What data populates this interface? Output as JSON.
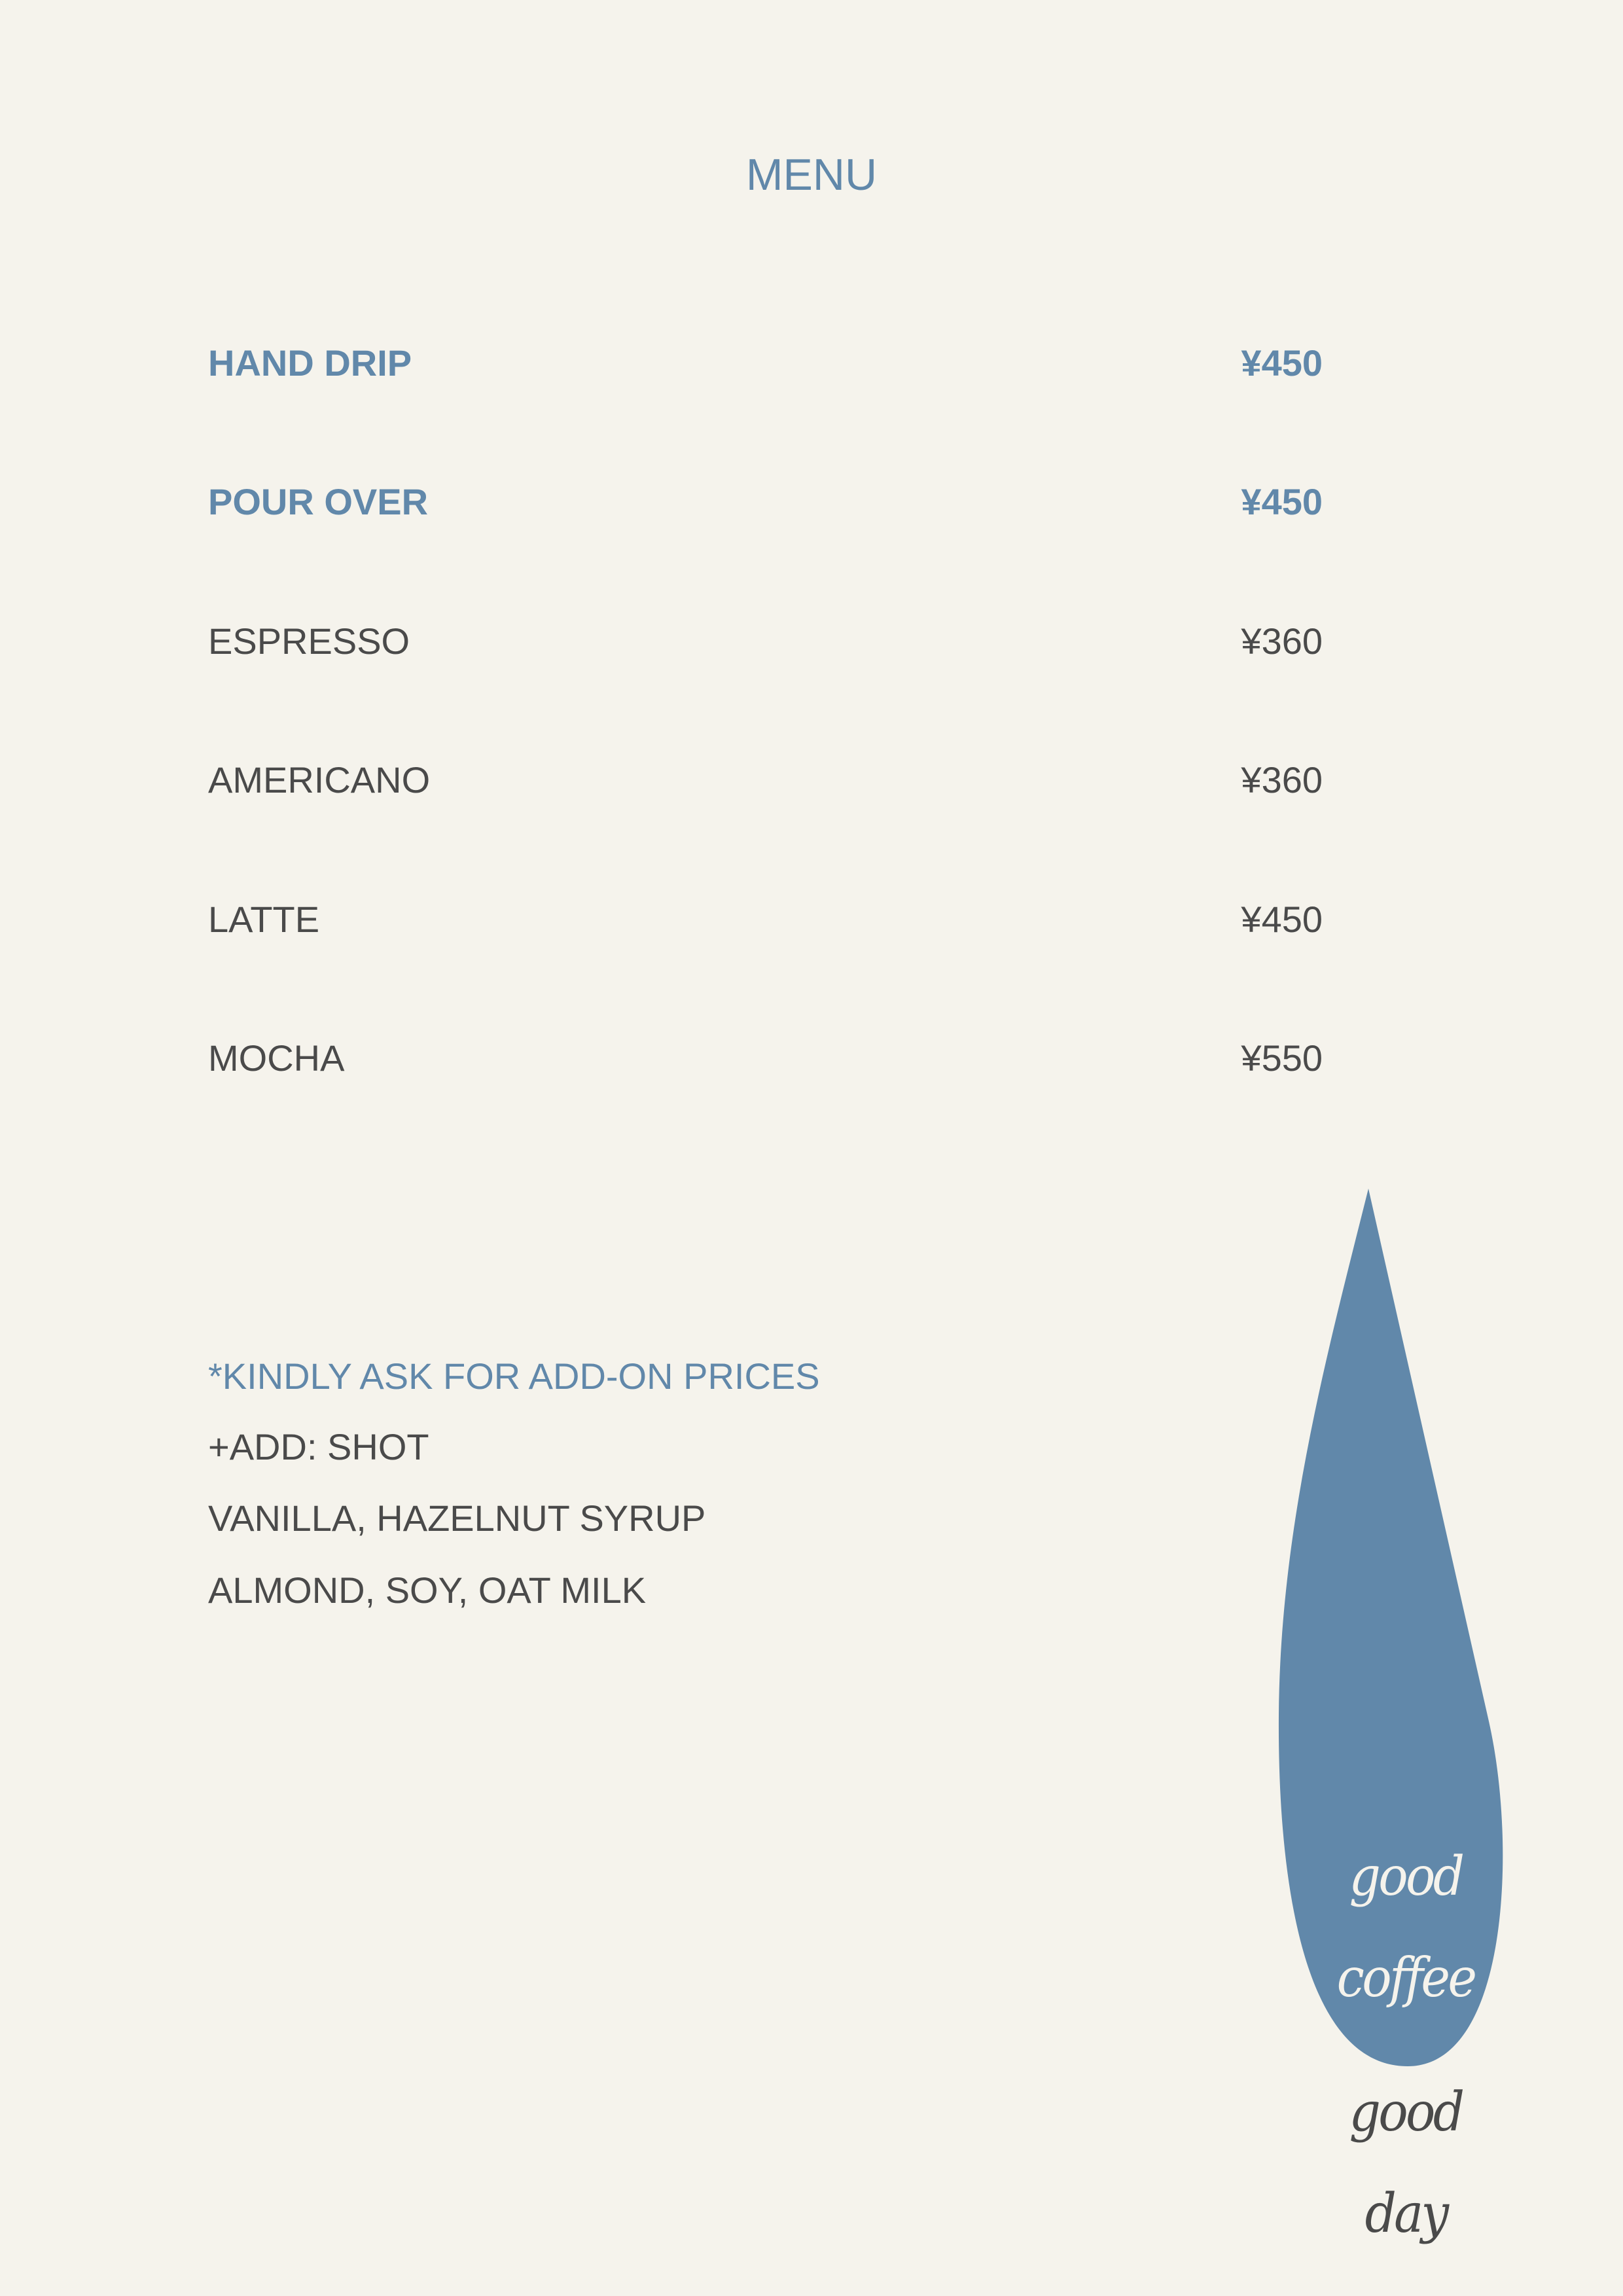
{
  "title": "MENU",
  "items": [
    {
      "name": "HAND DRIP",
      "price": "¥450",
      "highlight": true
    },
    {
      "name": "POUR OVER",
      "price": "¥450",
      "highlight": true
    },
    {
      "name": "ESPRESSO",
      "price": "¥360",
      "highlight": false
    },
    {
      "name": "AMERICANO",
      "price": "¥360",
      "highlight": false
    },
    {
      "name": "LATTE",
      "price": "¥450",
      "highlight": false
    },
    {
      "name": "MOCHA",
      "price": "¥550",
      "highlight": false
    }
  ],
  "notes": {
    "addon_notice": "*KINDLY ASK FOR ADD-ON PRICES",
    "line1": "+ADD: SHOT",
    "line2": "VANILLA, HAZELNUT SYRUP",
    "line3": "ALMOND, SOY, OAT MILK"
  },
  "tagline": [
    "good",
    "coffee",
    "good",
    "day"
  ],
  "colors": {
    "accent": "#6188aa",
    "background": "#f5f3ec",
    "text": "#4a4a4a"
  }
}
